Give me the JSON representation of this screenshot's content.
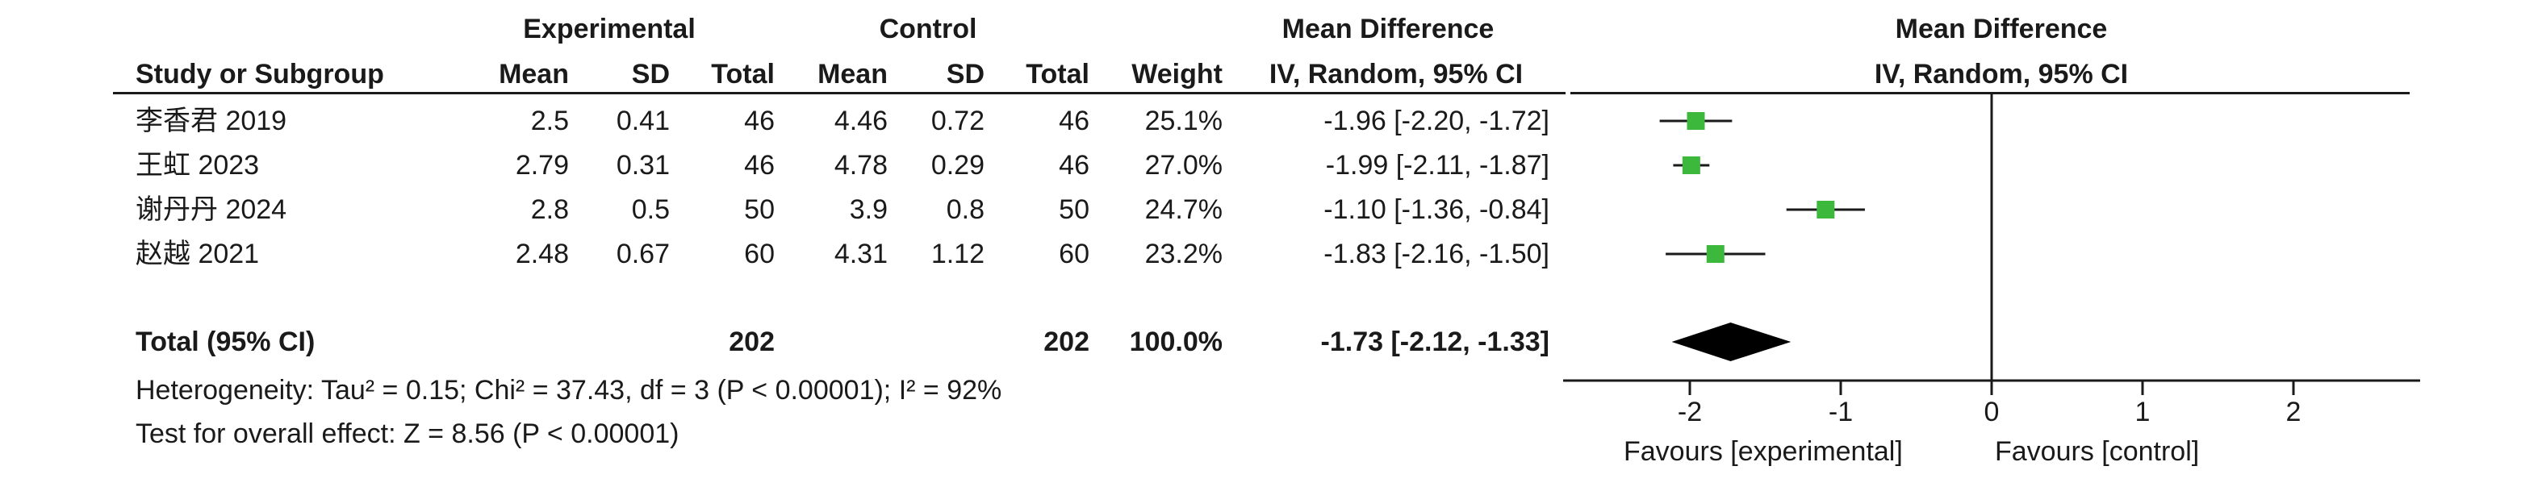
{
  "headers": {
    "experimental": "Experimental",
    "control": "Control",
    "mean_difference": "Mean Difference",
    "study_or_subgroup": "Study or Subgroup",
    "mean": "Mean",
    "sd": "SD",
    "total": "Total",
    "weight": "Weight",
    "method": "IV, Random, 95% CI"
  },
  "total_row": {
    "label": "Total (95% CI)",
    "exp_total": "202",
    "ctrl_total": "202",
    "weight": "100.0%",
    "ci": "-1.73 [-2.12, -1.33]"
  },
  "footer": {
    "heterogeneity": "Heterogeneity: Tau² = 0.15; Chi² = 37.43, df = 3 (P < 0.00001); I² = 92%",
    "overall_effect": "Test for overall effect: Z = 8.56 (P < 0.00001)"
  },
  "chart_data": {
    "type": "scatter",
    "title": "Mean Difference",
    "subtitle": "IV, Random, 95% CI",
    "xlim": [
      -3,
      3
    ],
    "xticks": [
      -2,
      -1,
      0,
      1,
      2
    ],
    "xtick_labels": [
      "-2",
      "-1",
      "0",
      "1",
      "2"
    ],
    "favours_left": "Favours [experimental]",
    "favours_right": "Favours [control]",
    "marker_color": "#3cb93c",
    "diamond_color": "#000000",
    "studies": [
      {
        "name": "李香君 2019",
        "exp_mean": "2.5",
        "exp_sd": "0.41",
        "exp_total": "46",
        "ctrl_mean": "4.46",
        "ctrl_sd": "0.72",
        "ctrl_total": "46",
        "weight": "25.1%",
        "ci_text": "-1.96 [-2.20, -1.72]",
        "md": -1.96,
        "lo": -2.2,
        "hi": -1.72
      },
      {
        "name": "王虹 2023",
        "exp_mean": "2.79",
        "exp_sd": "0.31",
        "exp_total": "46",
        "ctrl_mean": "4.78",
        "ctrl_sd": "0.29",
        "ctrl_total": "46",
        "weight": "27.0%",
        "ci_text": "-1.99 [-2.11, -1.87]",
        "md": -1.99,
        "lo": -2.11,
        "hi": -1.87
      },
      {
        "name": "谢丹丹 2024",
        "exp_mean": "2.8",
        "exp_sd": "0.5",
        "exp_total": "50",
        "ctrl_mean": "3.9",
        "ctrl_sd": "0.8",
        "ctrl_total": "50",
        "weight": "24.7%",
        "ci_text": "-1.10 [-1.36, -0.84]",
        "md": -1.1,
        "lo": -1.36,
        "hi": -0.84
      },
      {
        "name": "赵越 2021",
        "exp_mean": "2.48",
        "exp_sd": "0.67",
        "exp_total": "60",
        "ctrl_mean": "4.31",
        "ctrl_sd": "1.12",
        "ctrl_total": "60",
        "weight": "23.2%",
        "ci_text": "-1.83 [-2.16, -1.50]",
        "md": -1.83,
        "lo": -2.16,
        "hi": -1.5
      }
    ],
    "pooled": {
      "md": -1.73,
      "lo": -2.12,
      "hi": -1.33
    }
  }
}
